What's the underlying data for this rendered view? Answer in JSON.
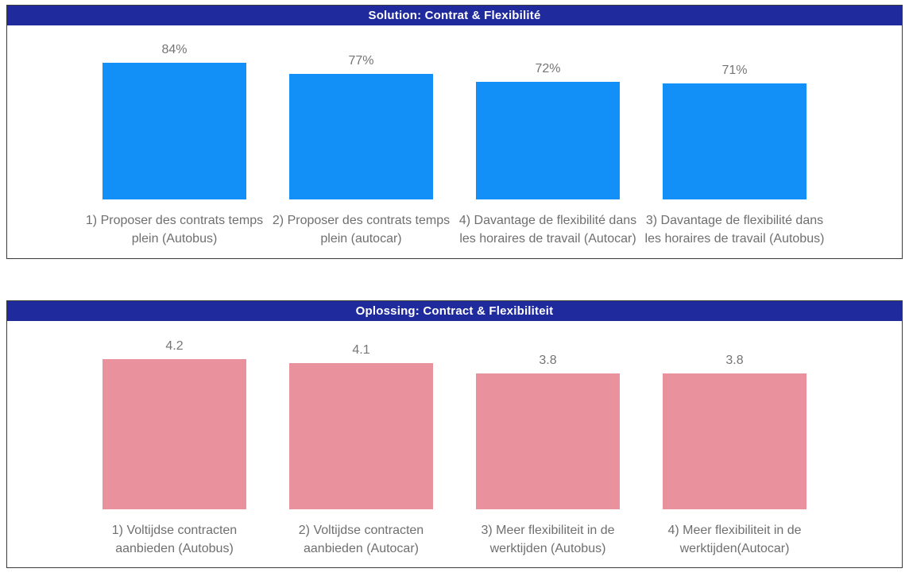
{
  "chart_data": [
    {
      "type": "bar",
      "title": "Solution: Contrat & Flexibilité",
      "categories": [
        "1) Proposer des contrats temps plein (Autobus)",
        "2) Proposer des contrats temps plein (autocar)",
        "4) Davantage de flexibilité dans les horaires de travail (Autocar)",
        "3) Davantage de flexibilité dans les horaires de travail (Autobus)"
      ],
      "values": [
        84,
        77,
        72,
        71
      ],
      "value_labels": [
        "84%",
        "77%",
        "72%",
        "71%"
      ],
      "ylim": [
        0,
        100
      ],
      "xlabel": "",
      "ylabel": "",
      "grid": false,
      "legend": "none",
      "bar_color": "#1390f8",
      "header_bg": "#1f2b9d",
      "header_text_color": "#ffffff",
      "value_label_color": "#757575",
      "category_label_color": "#6f6f6f"
    },
    {
      "type": "bar",
      "title": "Oplossing: Contract & Flexibiliteit",
      "categories": [
        "1) Voltijdse contracten aanbieden (Autobus)",
        "2) Voltijdse contracten aanbieden (Autocar)",
        "3) Meer flexibiliteit in de werktijden (Autobus)",
        "4) Meer flexibiliteit in de werktijden(Autocar)"
      ],
      "values": [
        4.2,
        4.1,
        3.8,
        3.8
      ],
      "value_labels": [
        "4.2",
        "4.1",
        "3.8",
        "3.8"
      ],
      "ylim": [
        0,
        4.5
      ],
      "xlabel": "",
      "ylabel": "",
      "grid": false,
      "legend": "none",
      "bar_color": "#e9929d",
      "header_bg": "#1f2b9d",
      "header_text_color": "#ffffff",
      "value_label_color": "#757575",
      "category_label_color": "#6f6f6f"
    }
  ]
}
